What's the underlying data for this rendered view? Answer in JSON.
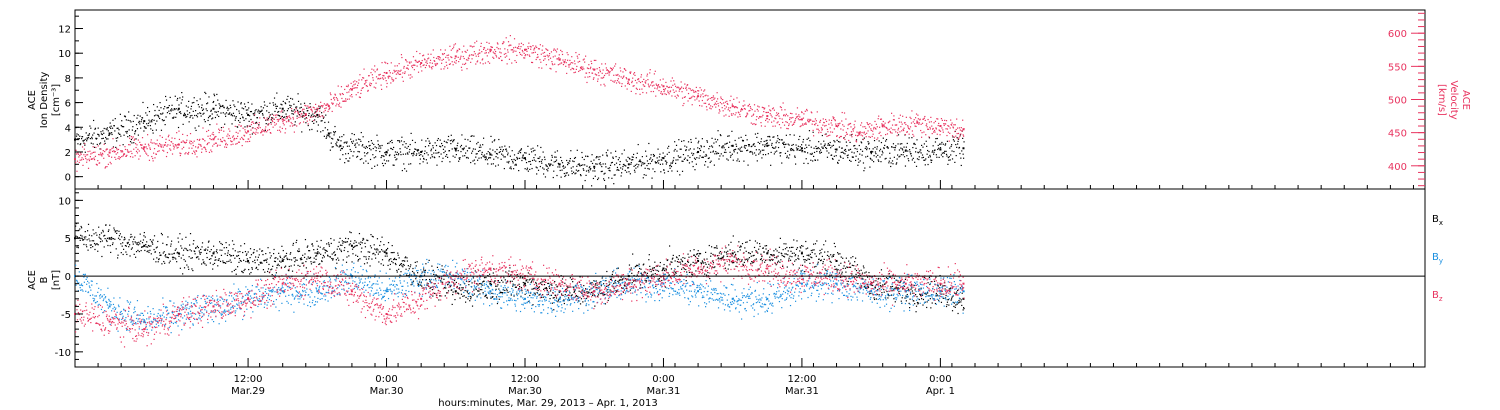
{
  "colors": {
    "black": "#000000",
    "pink": "#e8335f",
    "blue": "#1a8fe0"
  },
  "chart_data": [
    {
      "type": "scatter",
      "panel": "top",
      "ylabel_lines": [
        "ACE",
        "Ion Density",
        "[cm⁻³]"
      ],
      "ylim": [
        -1,
        13.5
      ],
      "yticks": [
        0,
        2,
        4,
        6,
        8,
        10,
        12
      ],
      "y2label_lines": [
        "ACE",
        "Velocity",
        "[km/s]"
      ],
      "y2lim": [
        365,
        635
      ],
      "y2ticks": [
        400,
        450,
        500,
        550,
        600
      ],
      "xlim_hours": [
        -15,
        102
      ],
      "xlabel": "hours:minutes, Mar. 29, 2013 – Apr. 1, 2013",
      "xticks": [
        {
          "h": 0,
          "time": "12:00",
          "date": "Mar.29"
        },
        {
          "h": 12,
          "time": "0:00",
          "date": "Mar.30"
        },
        {
          "h": 24,
          "time": "12:00",
          "date": "Mar.30"
        },
        {
          "h": 36,
          "time": "0:00",
          "date": "Mar.31"
        },
        {
          "h": 48,
          "time": "12:00",
          "date": "Mar.31"
        },
        {
          "h": 60,
          "time": "0:00",
          "date": "Apr. 1"
        }
      ],
      "series": [
        {
          "color": "black",
          "axis": "left",
          "x": [
            -15,
            -12,
            -9,
            -6,
            -3,
            0,
            3,
            6,
            7,
            8,
            12,
            15,
            18,
            21,
            24,
            27,
            30,
            33,
            36,
            39,
            42,
            45,
            48,
            51,
            54,
            57,
            60,
            62
          ],
          "y": [
            3.0,
            3.5,
            4.5,
            5.5,
            5.5,
            5.0,
            5.5,
            5.0,
            3.5,
            2.5,
            2.0,
            2.0,
            2.2,
            1.8,
            1.5,
            1.0,
            0.8,
            1.0,
            1.5,
            2.0,
            2.5,
            2.5,
            2.3,
            2.2,
            2.0,
            2.1,
            2.2,
            2.3
          ]
        },
        {
          "color": "pink",
          "axis": "right",
          "x": [
            -15,
            -12,
            -9,
            -6,
            -3,
            0,
            3,
            5,
            7,
            9,
            12,
            15,
            18,
            21,
            24,
            27,
            30,
            33,
            36,
            39,
            42,
            45,
            48,
            51,
            53,
            55,
            58,
            60,
            62
          ],
          "y": [
            410,
            420,
            428,
            432,
            440,
            452,
            470,
            478,
            490,
            515,
            540,
            555,
            565,
            575,
            575,
            560,
            545,
            530,
            520,
            505,
            490,
            475,
            470,
            460,
            450,
            460,
            465,
            460,
            455
          ]
        }
      ]
    },
    {
      "type": "scatter",
      "panel": "bottom",
      "ylabel_lines": [
        "ACE",
        "B",
        "[nT]"
      ],
      "ylim": [
        -12,
        11.5
      ],
      "yticks": [
        -10,
        -5,
        0,
        5,
        10
      ],
      "zero_line": true,
      "xlim_hours": [
        -15,
        102
      ],
      "series": [
        {
          "name": "B",
          "subscript": "x",
          "color": "black",
          "x": [
            -15,
            -12,
            -9,
            -6,
            -3,
            0,
            3,
            6,
            9,
            12,
            15,
            18,
            21,
            24,
            27,
            30,
            33,
            36,
            39,
            42,
            45,
            48,
            51,
            54,
            57,
            60,
            62
          ],
          "y": [
            5,
            5,
            4,
            3,
            3,
            2,
            2,
            3,
            4,
            3,
            0,
            -2,
            -1,
            -1,
            -2,
            -2,
            0,
            1,
            2,
            3,
            3,
            3,
            2,
            -1,
            -2,
            -2,
            -3
          ]
        },
        {
          "name": "B",
          "subscript": "y",
          "color": "blue",
          "x": [
            -15,
            -12,
            -9,
            -6,
            -3,
            0,
            3,
            6,
            9,
            12,
            15,
            18,
            21,
            24,
            27,
            30,
            33,
            36,
            39,
            42,
            45,
            48,
            51,
            54,
            57,
            60,
            62
          ],
          "y": [
            0,
            -4,
            -6,
            -5,
            -4,
            -3,
            -2,
            -2,
            0,
            -2,
            0,
            0,
            -2,
            -3,
            -3,
            -2,
            -1,
            -1,
            -2,
            -3,
            -3,
            -1,
            -1,
            -2,
            -2,
            -2,
            -2
          ]
        },
        {
          "name": "B",
          "subscript": "z",
          "color": "pink",
          "x": [
            -15,
            -12,
            -9,
            -6,
            -3,
            0,
            3,
            6,
            9,
            12,
            15,
            18,
            21,
            24,
            27,
            30,
            33,
            36,
            39,
            42,
            45,
            48,
            51,
            54,
            57,
            60,
            62
          ],
          "y": [
            -5,
            -6,
            -7,
            -5,
            -4,
            -3,
            -1,
            0,
            -2,
            -5,
            -3,
            0,
            1,
            0,
            -1,
            -2,
            -1,
            0,
            1,
            2,
            1,
            0,
            0,
            -1,
            -1,
            -1,
            -1
          ]
        }
      ]
    }
  ]
}
